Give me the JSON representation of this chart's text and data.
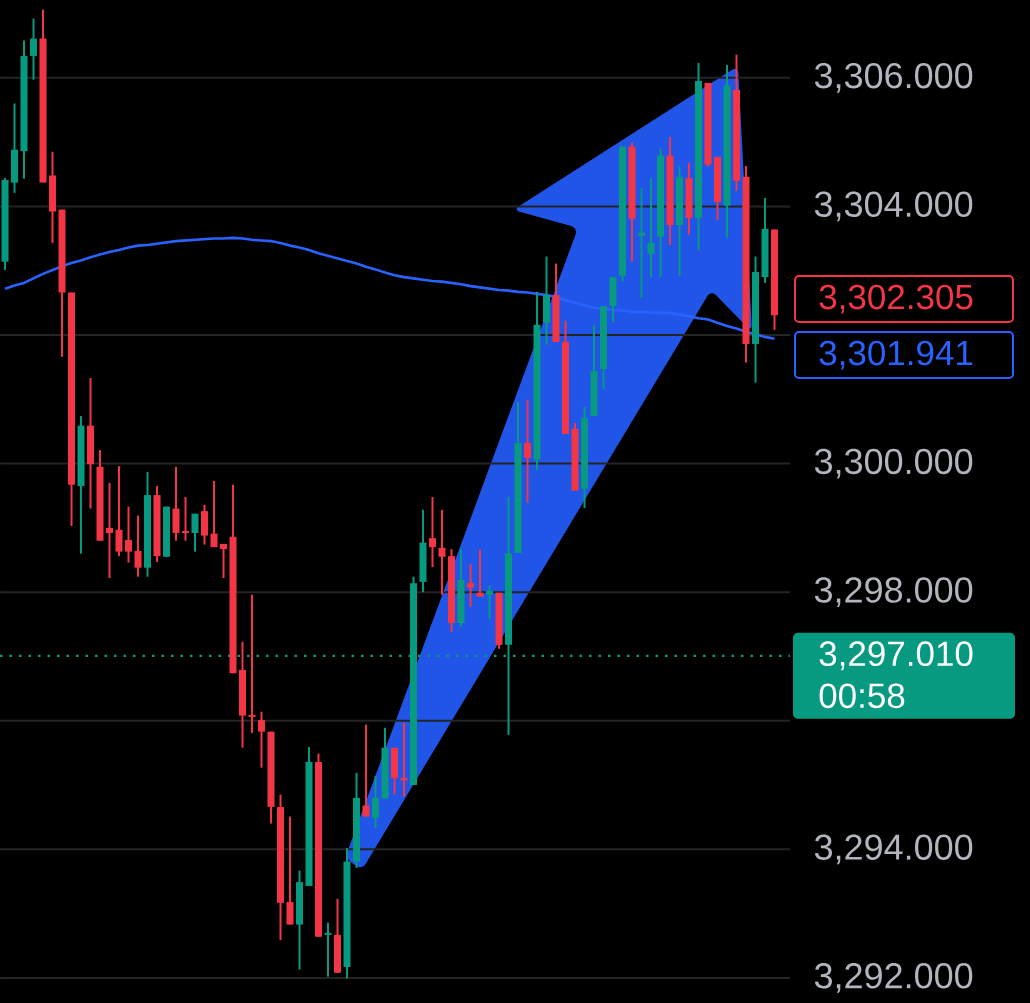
{
  "chart_data": {
    "type": "candlestick",
    "categories": [
      null,
      null,
      null,
      null,
      null,
      null,
      null,
      null,
      null,
      null,
      null,
      null,
      null,
      null,
      null,
      null,
      null,
      null,
      null,
      null,
      null,
      null,
      null,
      null,
      null,
      null,
      null,
      null,
      null,
      null,
      null,
      null,
      null,
      null,
      null,
      null,
      null,
      null,
      null,
      null,
      null,
      null,
      null,
      null,
      null,
      null,
      null,
      null,
      null,
      null,
      null,
      null,
      null,
      null,
      null,
      null,
      null,
      null,
      null,
      null,
      null,
      null,
      null,
      null,
      null,
      null,
      null,
      null,
      null,
      null,
      null,
      null,
      null,
      null,
      null,
      null,
      null,
      null,
      null,
      null,
      null,
      null
    ],
    "ohlc": [
      [
        3303.14,
        3304.44,
        3303.01,
        3304.41
      ],
      [
        3304.37,
        3305.6,
        3304.21,
        3304.88
      ],
      [
        3304.86,
        3306.58,
        3304.43,
        3306.34
      ],
      [
        3306.34,
        3306.92,
        3305.97,
        3306.61
      ],
      [
        3306.61,
        3307.06,
        3304.37,
        3304.37
      ],
      [
        3304.48,
        3304.85,
        3303.43,
        3303.92
      ],
      [
        3303.95,
        3303.95,
        3301.66,
        3302.66
      ],
      [
        3302.66,
        3302.66,
        3299.03,
        3299.67
      ],
      [
        3299.65,
        3300.74,
        3298.6,
        3300.59
      ],
      [
        3300.59,
        3301.33,
        3299.3,
        3299.99
      ],
      [
        3299.95,
        3300.21,
        3298.8,
        3298.8
      ],
      [
        3299.0,
        3299.7,
        3298.22,
        3298.92
      ],
      [
        3298.97,
        3299.96,
        3298.56,
        3298.63
      ],
      [
        3298.81,
        3299.33,
        3298.46,
        3298.63
      ],
      [
        3298.64,
        3299.19,
        3298.24,
        3298.38
      ],
      [
        3298.38,
        3299.87,
        3298.24,
        3299.51
      ],
      [
        3299.51,
        3299.65,
        3298.47,
        3298.56
      ],
      [
        3298.55,
        3299.33,
        3298.55,
        3299.33
      ],
      [
        3299.3,
        3299.95,
        3298.8,
        3298.92
      ],
      [
        3298.95,
        3299.48,
        3298.8,
        3298.92
      ],
      [
        3298.92,
        3299.22,
        3298.63,
        3299.22
      ],
      [
        3299.26,
        3299.36,
        3298.74,
        3298.88
      ],
      [
        3298.91,
        3299.73,
        3298.7,
        3298.7
      ],
      [
        3298.75,
        3298.75,
        3298.22,
        3298.67
      ],
      [
        3298.86,
        3299.67,
        3296.74,
        3296.74
      ],
      [
        3296.79,
        3297.23,
        3295.58,
        3296.08
      ],
      [
        3296.09,
        3297.96,
        3295.81,
        3296.06
      ],
      [
        3296.01,
        3296.14,
        3295.27,
        3295.83
      ],
      [
        3295.83,
        3295.83,
        3294.4,
        3294.66
      ],
      [
        3294.66,
        3294.85,
        3292.59,
        3293.17
      ],
      [
        3293.18,
        3294.51,
        3292.83,
        3292.83
      ],
      [
        3292.83,
        3293.67,
        3292.13,
        3293.49
      ],
      [
        3293.43,
        3295.59,
        3293.43,
        3295.36
      ],
      [
        3295.36,
        3295.49,
        3292.64,
        3292.64
      ],
      [
        3292.67,
        3292.86,
        3292.02,
        3292.7
      ],
      [
        3292.67,
        3293.23,
        3292.08,
        3292.08
      ],
      [
        3292.17,
        3294.02,
        3291.99,
        3293.81
      ],
      [
        3293.81,
        3295.19,
        3293.71,
        3294.8
      ],
      [
        3294.68,
        3295.94,
        3294.51,
        3294.51
      ],
      [
        3294.49,
        3295.14,
        3294.33,
        3294.8
      ],
      [
        3294.79,
        3295.89,
        3294.79,
        3295.58
      ],
      [
        3295.58,
        3295.58,
        3294.85,
        3295.11
      ],
      [
        3295.11,
        3295.97,
        3294.82,
        3295.07
      ],
      [
        3295.0,
        3298.24,
        3295.0,
        3298.14
      ],
      [
        3298.16,
        3299.28,
        3298.0,
        3298.77
      ],
      [
        3298.84,
        3299.48,
        3298.39,
        3298.7
      ],
      [
        3298.69,
        3299.28,
        3297.96,
        3298.55
      ],
      [
        3298.56,
        3298.67,
        3297.38,
        3297.52
      ],
      [
        3297.52,
        3298.67,
        3297.46,
        3298.19
      ],
      [
        3298.14,
        3298.44,
        3297.77,
        3298.07
      ],
      [
        3297.99,
        3298.66,
        3297.93,
        3297.93
      ],
      [
        3297.96,
        3298.1,
        3297.58,
        3298.02
      ],
      [
        3297.99,
        3297.99,
        3297.12,
        3297.18
      ],
      [
        3297.18,
        3299.48,
        3295.78,
        3298.6
      ],
      [
        3298.61,
        3300.96,
        3298.61,
        3300.32
      ],
      [
        3300.32,
        3300.99,
        3299.39,
        3300.09
      ],
      [
        3300.06,
        3302.67,
        3299.9,
        3302.16
      ],
      [
        3302.19,
        3303.22,
        3301.85,
        3302.62
      ],
      [
        3302.62,
        3303.11,
        3301.89,
        3301.89
      ],
      [
        3301.89,
        3302.22,
        3300.46,
        3300.46
      ],
      [
        3300.54,
        3300.63,
        3299.58,
        3299.58
      ],
      [
        3299.61,
        3300.88,
        3299.31,
        3300.71
      ],
      [
        3300.74,
        3302.16,
        3300.74,
        3301.44
      ],
      [
        3301.47,
        3302.45,
        3301.16,
        3302.45
      ],
      [
        3302.45,
        3302.9,
        3302.2,
        3302.9
      ],
      [
        3302.92,
        3304.93,
        3302.83,
        3304.93
      ],
      [
        3304.93,
        3304.99,
        3303.14,
        3303.81
      ],
      [
        3303.54,
        3304.29,
        3302.58,
        3303.59
      ],
      [
        3303.26,
        3304.44,
        3302.9,
        3303.43
      ],
      [
        3303.53,
        3304.9,
        3302.9,
        3304.79
      ],
      [
        3304.79,
        3305.08,
        3303.4,
        3303.71
      ],
      [
        3303.71,
        3304.62,
        3302.92,
        3304.46
      ],
      [
        3304.44,
        3304.68,
        3303.56,
        3303.82
      ],
      [
        3303.82,
        3306.23,
        3303.32,
        3305.95
      ],
      [
        3305.92,
        3305.92,
        3304.62,
        3304.65
      ],
      [
        3304.77,
        3304.77,
        3303.79,
        3304.07
      ],
      [
        3304.01,
        3306.2,
        3303.51,
        3305.88
      ],
      [
        3305.81,
        3306.36,
        3304.24,
        3304.4
      ],
      [
        3304.46,
        3304.63,
        3301.57,
        3301.86
      ],
      [
        3301.86,
        3303.22,
        3301.26,
        3302.98
      ],
      [
        3302.9,
        3304.13,
        3302.81,
        3303.65
      ],
      [
        3303.64,
        3303.64,
        3302.08,
        3302.305
      ]
    ],
    "colors": [
      "#089981",
      "#089981",
      "#089981",
      "#089981",
      "#f23645",
      "#f23645",
      "#f23645",
      "#f23645",
      "#089981",
      "#f23645",
      "#f23645",
      "#f23645",
      "#f23645",
      "#f23645",
      "#f23645",
      "#089981",
      "#f23645",
      "#089981",
      "#f23645",
      "#f23645",
      "#089981",
      "#f23645",
      "#f23645",
      "#f23645",
      "#f23645",
      "#f23645",
      "#f23645",
      "#f23645",
      "#f23645",
      "#f23645",
      "#f23645",
      "#089981",
      "#089981",
      "#f23645",
      "#089981",
      "#f23645",
      "#089981",
      "#089981",
      "#f23645",
      "#089981",
      "#089981",
      "#f23645",
      "#f23645",
      "#089981",
      "#089981",
      "#f23645",
      "#f23645",
      "#f23645",
      "#089981",
      "#f23645",
      "#f23645",
      "#089981",
      "#f23645",
      "#089981",
      "#089981",
      "#f23645",
      "#089981",
      "#089981",
      "#f23645",
      "#f23645",
      "#f23645",
      "#089981",
      "#089981",
      "#089981",
      "#089981",
      "#089981",
      "#f23645",
      "#089981",
      "#089981",
      "#089981",
      "#f23645",
      "#089981",
      "#f23645",
      "#089981",
      "#f23645",
      "#f23645",
      "#089981",
      "#f23645",
      "#f23645",
      "#089981",
      "#089981",
      "#f23645"
    ],
    "series": [
      {
        "type": "line",
        "color": "#2962ff",
        "values": [
          3302.72,
          3302.77,
          3302.81,
          3302.88,
          3302.95,
          3303.01,
          3303.07,
          3303.12,
          3303.16,
          3303.21,
          3303.25,
          3303.29,
          3303.32,
          3303.36,
          3303.39,
          3303.4,
          3303.42,
          3303.44,
          3303.46,
          3303.47,
          3303.48,
          3303.49,
          3303.5,
          3303.5,
          3303.51,
          3303.5,
          3303.48,
          3303.47,
          3303.46,
          3303.43,
          3303.39,
          3303.36,
          3303.32,
          3303.27,
          3303.23,
          3303.19,
          3303.15,
          3303.11,
          3303.06,
          3303.02,
          3302.97,
          3302.93,
          3302.9,
          3302.88,
          3302.86,
          3302.84,
          3302.83,
          3302.81,
          3302.79,
          3302.76,
          3302.74,
          3302.72,
          3302.7,
          3302.69,
          3302.67,
          3302.66,
          3302.64,
          3302.62,
          3302.59,
          3302.54,
          3302.5,
          3302.46,
          3302.42,
          3302.41,
          3302.39,
          3302.38,
          3302.36,
          3302.36,
          3302.35,
          3302.35,
          3302.34,
          3302.32,
          3302.29,
          3302.26,
          3302.24,
          3302.19,
          3302.14,
          3302.1,
          3302.05,
          3302.01,
          3301.97,
          3301.94
        ]
      }
    ],
    "ylim": [
      3291.61,
      3307.21
    ],
    "yticks": [
      {
        "value": 3292,
        "label": "3,292.000"
      },
      {
        "value": 3294,
        "label": "3,294.000"
      },
      {
        "value": 3296,
        "label": null
      },
      {
        "value": 3298,
        "label": "3,298.000"
      },
      {
        "value": 3300,
        "label": "3,300.000"
      },
      {
        "value": 3302,
        "label": null
      },
      {
        "value": 3304,
        "label": "3,304.000"
      },
      {
        "value": 3306,
        "label": "3,306.000"
      }
    ],
    "grid": "y",
    "ref_lines": [
      {
        "axis": "y",
        "value": 3297.01,
        "label": "3,297.010",
        "color": "#089981",
        "line_style": "dotted"
      }
    ],
    "annotations": [
      "00:58",
      "3,302.305",
      "3,301.941"
    ]
  }
}
